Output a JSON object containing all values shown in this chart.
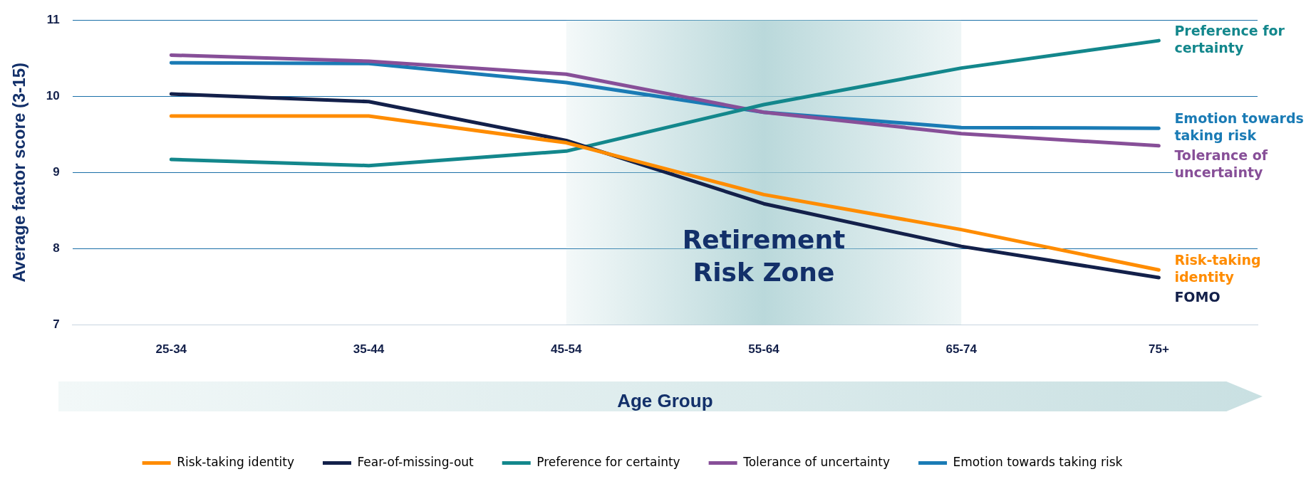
{
  "chart_data": {
    "type": "line",
    "xlabel": "Age Group",
    "ylabel": "Average factor score (3-15)",
    "categories": [
      "25-34",
      "35-44",
      "45-54",
      "55-64",
      "65-74",
      "75+"
    ],
    "series": [
      {
        "name": "Risk-taking identity",
        "color": "#ff8c00",
        "values": [
          9.74,
          9.74,
          9.39,
          8.71,
          8.25,
          7.72
        ]
      },
      {
        "name": "Fear-of-missing-out",
        "color": "#13204a",
        "values": [
          10.03,
          9.93,
          9.42,
          8.59,
          8.03,
          7.62
        ]
      },
      {
        "name": "Preference for certainty",
        "color": "#13878c",
        "values": [
          9.17,
          9.09,
          9.28,
          9.89,
          10.37,
          10.73
        ]
      },
      {
        "name": "Tolerance of uncertainty",
        "color": "#874f98",
        "values": [
          10.54,
          10.46,
          10.29,
          9.79,
          9.51,
          9.35
        ]
      },
      {
        "name": "Emotion towards taking risk",
        "color": "#1a7bb5",
        "values": [
          10.44,
          10.43,
          10.18,
          9.79,
          9.59,
          9.58
        ]
      }
    ],
    "ylim": [
      7,
      11
    ],
    "yticks": [
      7,
      8,
      9,
      10,
      11
    ],
    "grid": "y",
    "legend": "bottom",
    "marker": "none",
    "line_style": "solid",
    "bands": [
      {
        "axis": "x",
        "from": "45-54",
        "to": "65-74",
        "label": "Retirement Risk Zone",
        "color": "#a9cfd2"
      }
    ],
    "annotations": [
      {
        "text": "Preference for certainty",
        "x": "75+",
        "y": 10.73
      },
      {
        "text": "Emotion towards taking risk",
        "x": "75+",
        "y": 9.58
      },
      {
        "text": "Tolerance of uncertainty",
        "x": "75+",
        "y": 9.35
      },
      {
        "text": "Risk-taking identity",
        "x": "75+",
        "y": 7.72
      },
      {
        "text": "FOMO",
        "x": "75+",
        "y": 7.62
      }
    ]
  }
}
